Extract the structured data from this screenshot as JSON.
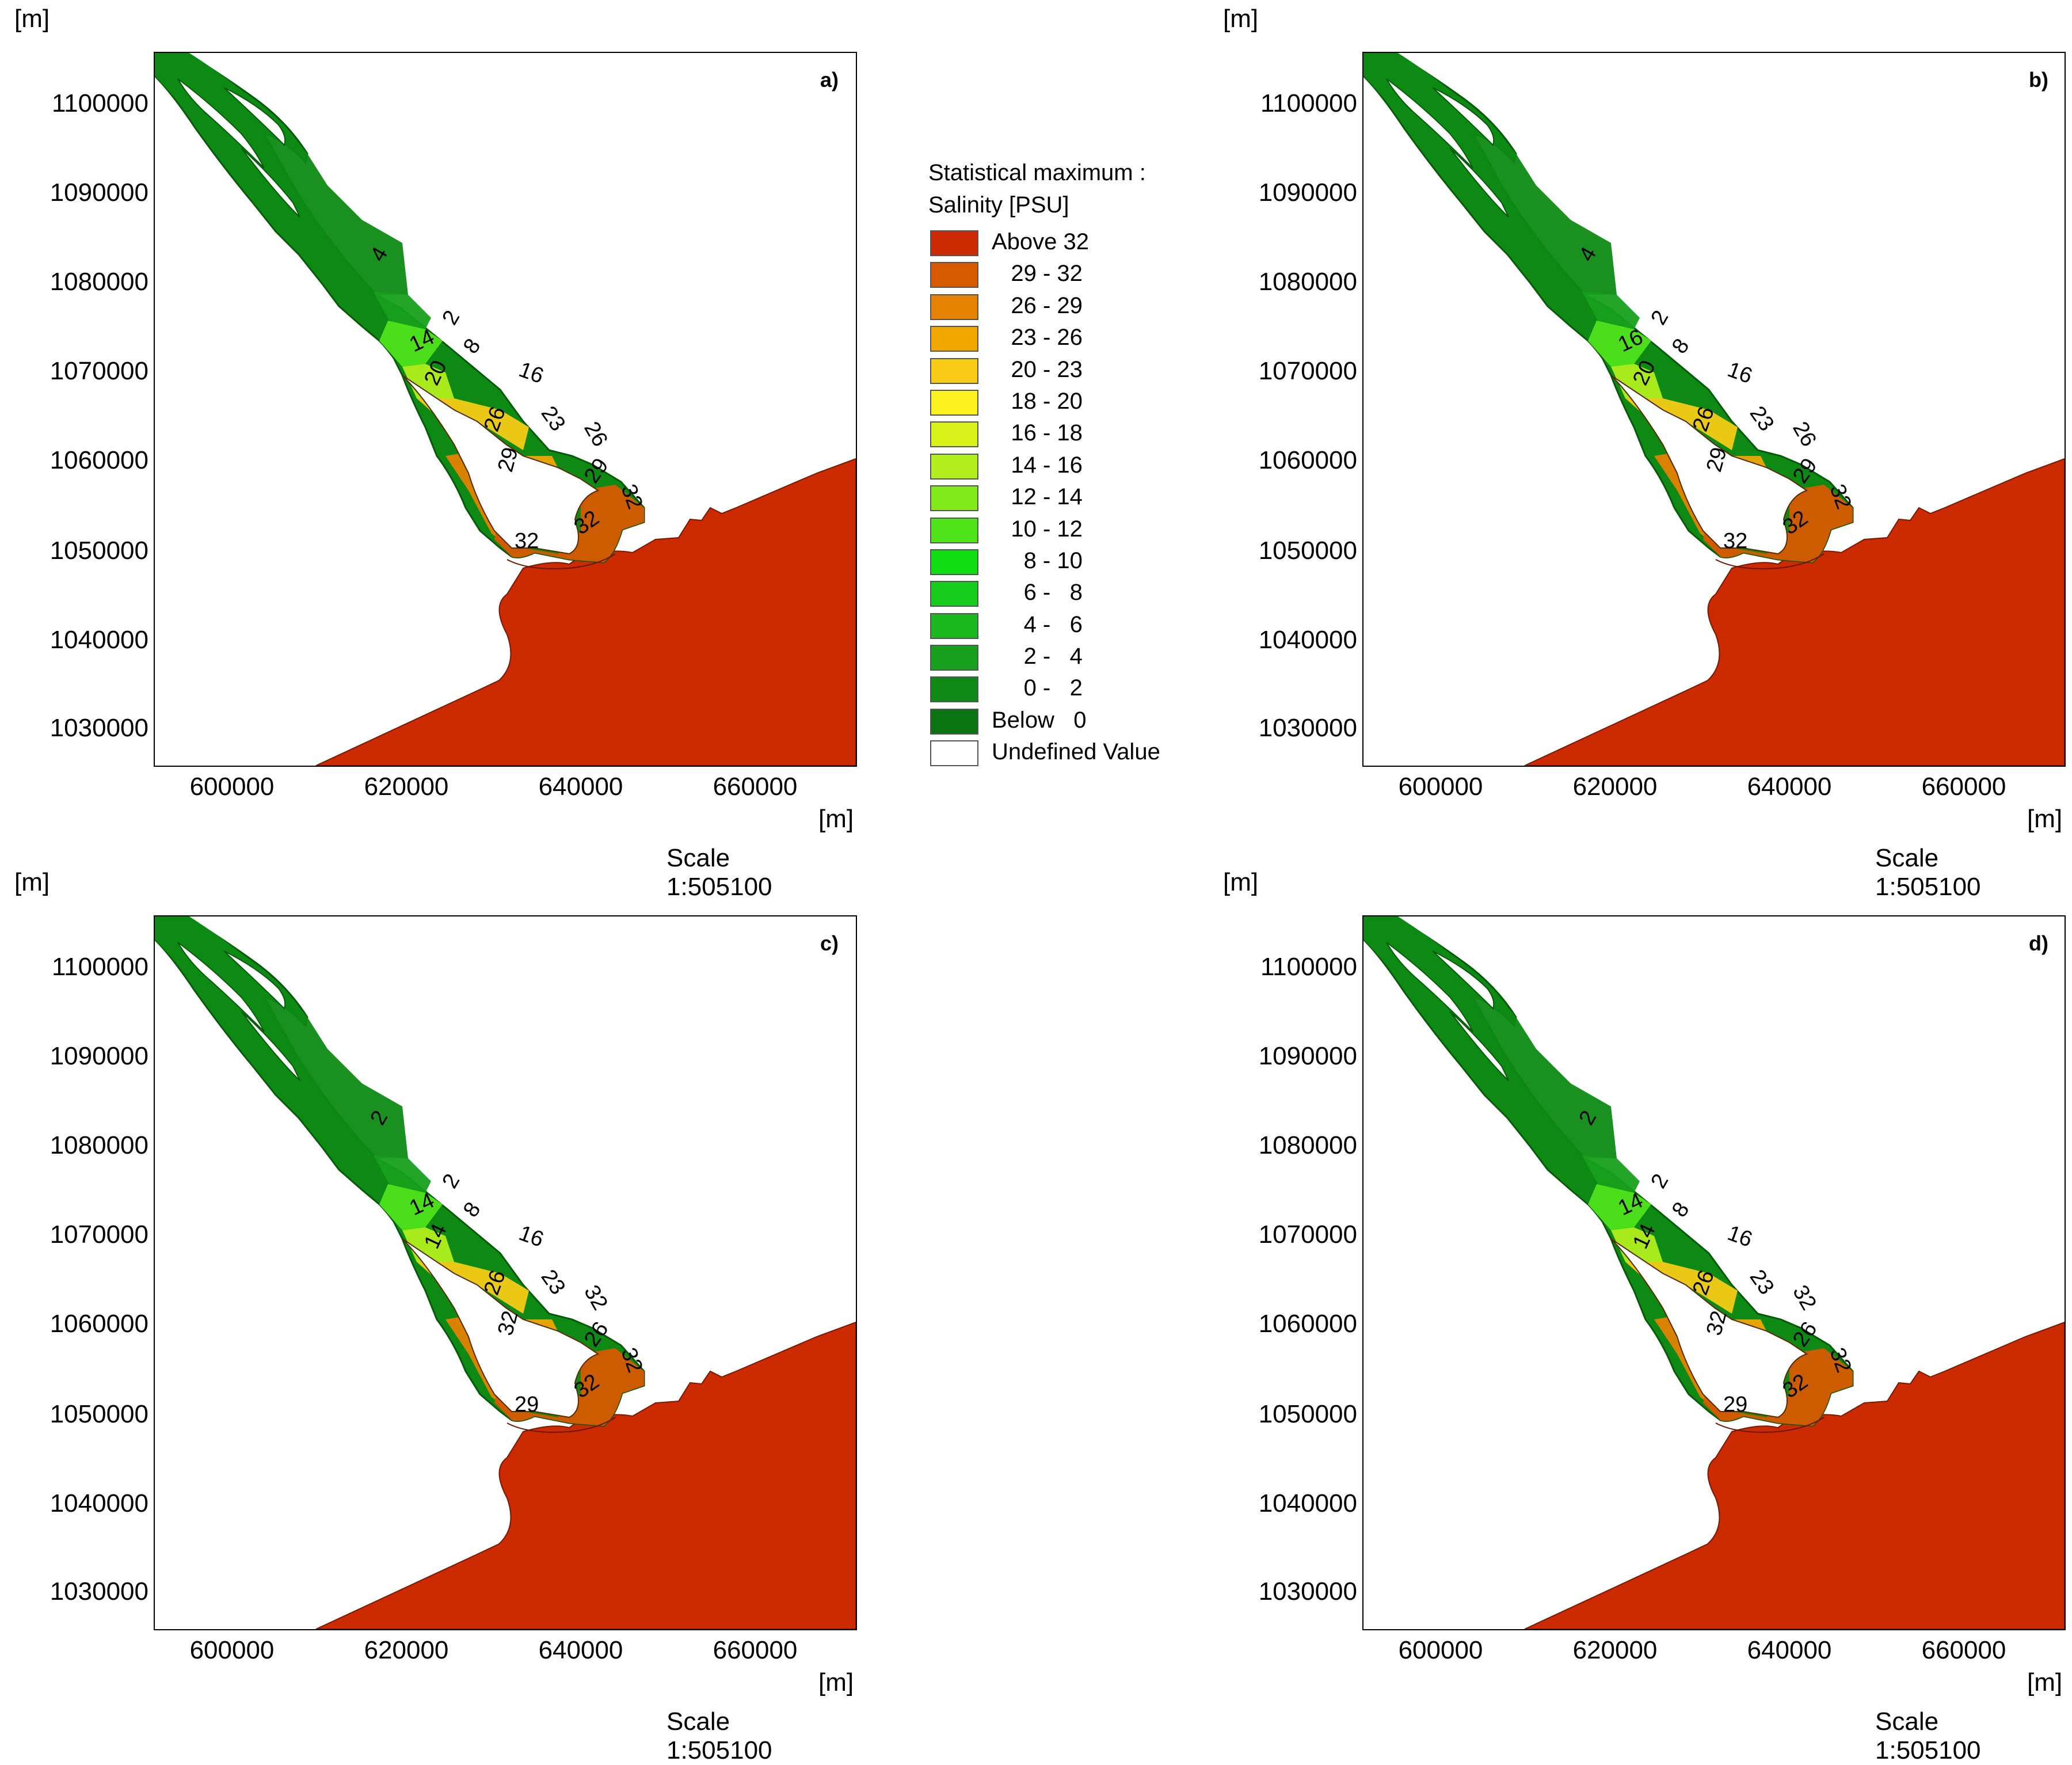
{
  "legend": {
    "title_line1": "Statistical maximum :",
    "title_line2": "Salinity [PSU]",
    "entries": [
      {
        "label": "Above 32",
        "color": "#cc2a00"
      },
      {
        "label": "   29 - 32",
        "color": "#d85a00"
      },
      {
        "label": "   26 - 29",
        "color": "#e58200"
      },
      {
        "label": "   23 - 26",
        "color": "#f1a600"
      },
      {
        "label": "   20 - 23",
        "color": "#f7cb16"
      },
      {
        "label": "   18 - 20",
        "color": "#fdf21f"
      },
      {
        "label": "   16 - 18",
        "color": "#d9f31a"
      },
      {
        "label": "   14 - 16",
        "color": "#b2ef1e"
      },
      {
        "label": "   12 - 14",
        "color": "#82e91b"
      },
      {
        "label": "   10 - 12",
        "color": "#4fe31a"
      },
      {
        "label": "     8 - 10",
        "color": "#10dd12"
      },
      {
        "label": "     6 -   8",
        "color": "#17cc1a"
      },
      {
        "label": "     4 -   6",
        "color": "#1db720"
      },
      {
        "label": "     2 -   4",
        "color": "#17a01b"
      },
      {
        "label": "     0 -   2",
        "color": "#0e8a14"
      },
      {
        "label": "Below   0",
        "color": "#0a7510"
      },
      {
        "label": "Undefined Value",
        "color": "#ffffff"
      }
    ]
  },
  "axes": {
    "x_unit": "[m]",
    "y_unit": "[m]",
    "x_ticks": [
      "600000",
      "620000",
      "640000",
      "660000"
    ],
    "y_ticks": [
      "1100000",
      "1090000",
      "1080000",
      "1070000",
      "1060000",
      "1050000",
      "1040000",
      "1030000"
    ],
    "scale": "Scale 1:505100"
  },
  "panels": [
    {
      "tag": "a)",
      "contour_labels": [
        "4",
        "2",
        "14",
        "8",
        "16",
        "20",
        "23",
        "26",
        "26",
        "29",
        "29",
        "32",
        "32",
        "32"
      ]
    },
    {
      "tag": "b)",
      "contour_labels": [
        "4",
        "2",
        "16",
        "8",
        "16",
        "20",
        "23",
        "26",
        "26",
        "29",
        "29",
        "32",
        "32",
        "32"
      ]
    },
    {
      "tag": "c)",
      "contour_labels": [
        "2",
        "2",
        "14",
        "8",
        "16",
        "14",
        "23",
        "26",
        "32",
        "32",
        "26",
        "29",
        "32",
        "32"
      ]
    },
    {
      "tag": "d)",
      "contour_labels": [
        "2",
        "2",
        "14",
        "8",
        "16",
        "14",
        "23",
        "26",
        "32",
        "32",
        "26",
        "29",
        "32",
        "32"
      ]
    }
  ],
  "colors": {
    "sea": "#cc2a00",
    "frame": "#000000"
  }
}
